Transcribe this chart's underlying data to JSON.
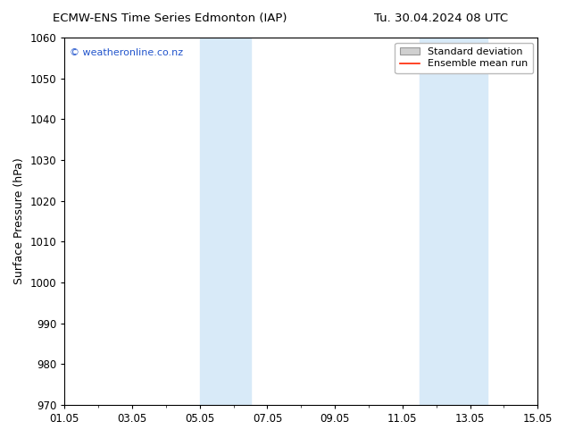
{
  "title_left": "ECMW-ENS Time Series Edmonton (IAP)",
  "title_right": "Tu. 30.04.2024 08 UTC",
  "ylabel": "Surface Pressure (hPa)",
  "ylim": [
    970,
    1060
  ],
  "yticks": [
    970,
    980,
    990,
    1000,
    1010,
    1020,
    1030,
    1040,
    1050,
    1060
  ],
  "xtick_labels": [
    "01.05",
    "03.05",
    "05.05",
    "07.05",
    "09.05",
    "11.05",
    "13.05",
    "15.05"
  ],
  "xtick_positions": [
    0,
    2,
    4,
    6,
    8,
    10,
    12,
    14
  ],
  "xlim_start": 0,
  "xlim_end": 14,
  "shaded_bands": [
    {
      "x_start": 4.0,
      "x_end": 5.5,
      "color": "#d8eaf8"
    },
    {
      "x_start": 10.5,
      "x_end": 12.5,
      "color": "#d8eaf8"
    }
  ],
  "watermark_text": "© weatheronline.co.nz",
  "watermark_color": "#2255cc",
  "legend_label1": "Standard deviation",
  "legend_label2": "Ensemble mean run",
  "legend_color1": "#d0d0d0",
  "legend_color2": "#ff2200",
  "bg_color": "#ffffff",
  "plot_bg_color": "#ffffff",
  "title_fontsize": 9.5,
  "ylabel_fontsize": 9,
  "tick_fontsize": 8.5,
  "watermark_fontsize": 8,
  "legend_fontsize": 8
}
